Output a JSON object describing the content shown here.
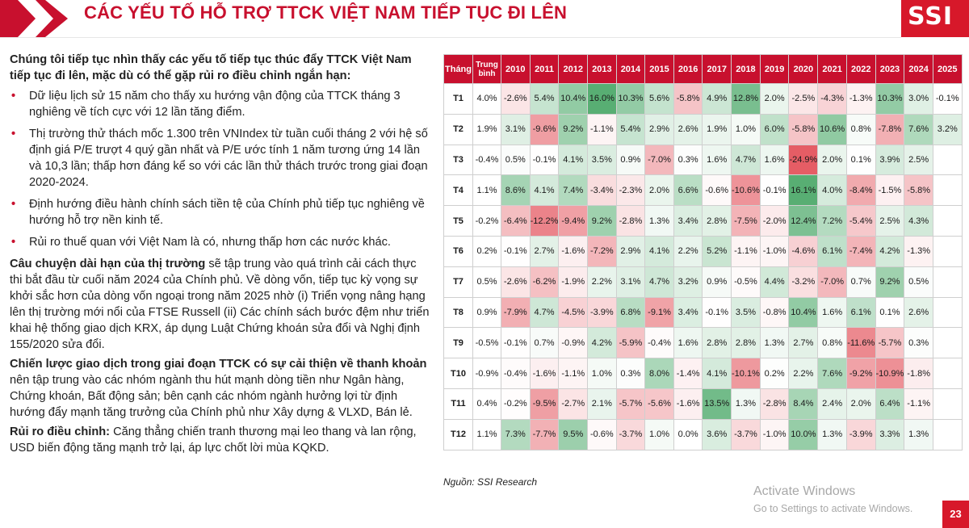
{
  "header": {
    "title": "CÁC YẾU TỐ HỖ TRỢ TTCK VIỆT NAM TIẾP TỤC ĐI LÊN",
    "logo": "SSI",
    "accent_color": "#c8102e"
  },
  "left": {
    "intro": "Chúng tôi tiếp tục nhìn thấy các yếu tố tiếp tục thúc đẩy TTCK Việt Nam tiếp tục đi lên, mặc dù có thể gặp rủi ro điều chỉnh ngắn hạn:",
    "bullets": [
      "Dữ liệu lịch sử 15 năm cho thấy xu hướng vận động của TTCK tháng 3 nghiêng về tích cực với 12 lần tăng điểm.",
      "Thị trường thử thách mốc 1.300 trên VNIndex từ tuần cuối tháng 2 với hệ số định giá P/E trượt 4 quý gần nhất và P/E ước tính 1 năm tương ứng 14 lần và 10,3 lần; thấp hơn đáng kể so với các lần thử thách trước trong giai đoạn 2020-2024.",
      "Định hướng điều hành chính sách tiền tệ của Chính phủ tiếp tục nghiêng về hướng hỗ trợ nền kinh tế.",
      "Rủi ro thuế quan với Việt Nam là có, nhưng thấp hơn các nước khác."
    ],
    "paragraphs": [
      {
        "lead": "Câu chuyện dài hạn của thị trường",
        "text": " sẽ tập trung vào quá trình cải cách thực thi bắt đầu từ cuối năm 2024 của Chính phủ. Về dòng vốn, tiếp tục kỳ vọng sự khởi sắc hơn của dòng vốn ngoại trong năm 2025 nhờ (i) Triển vọng nâng hạng lên thị trường mới nổi của FTSE Russell (ii) Các chính sách bước đệm như triển khai hệ thống giao dịch KRX, áp dụng Luật Chứng khoán sửa đổi và Nghị định 155/2020 sửa đổi."
      },
      {
        "lead": "Chiến lược giao dịch trong giai đoạn TTCK có sự cải thiện về thanh khoản",
        "text": " nên tập trung vào các nhóm ngành thu hút mạnh dòng tiền như Ngân hàng, Chứng khoán, Bất động sản; bên cạnh các nhóm ngành hưởng lợi từ định hướng đẩy mạnh tăng trưởng của Chính phủ như Xây dựng & VLXD, Bán lẻ."
      },
      {
        "lead": "Rủi ro điều chỉnh:",
        "text": " Căng thẳng chiến tranh thương mại leo thang và lan rộng, USD biến động tăng mạnh trở lại, áp lực chốt lời mùa KQKD."
      }
    ]
  },
  "table": {
    "headers": [
      "Tháng",
      "Trung bình",
      "2010",
      "2011",
      "2012",
      "2013",
      "2014",
      "2015",
      "2016",
      "2017",
      "2018",
      "2019",
      "2020",
      "2021",
      "2022",
      "2023",
      "2024",
      "2025"
    ],
    "rows": [
      {
        "label": "T1",
        "cells": [
          "4.0%",
          "-2.6%",
          "5.4%",
          "10.4%",
          "16.0%",
          "10.3%",
          "5.6%",
          "-5.8%",
          "4.9%",
          "12.8%",
          "2.0%",
          "-2.5%",
          "-4.3%",
          "-1.3%",
          "10.3%",
          "3.0%",
          "-0.1%"
        ]
      },
      {
        "label": "T2",
        "cells": [
          "1.9%",
          "3.1%",
          "-9.6%",
          "9.2%",
          "-1.1%",
          "5.4%",
          "2.9%",
          "2.6%",
          "1.9%",
          "1.0%",
          "6.0%",
          "-5.8%",
          "10.6%",
          "0.8%",
          "-7.8%",
          "7.6%",
          "3.2%"
        ]
      },
      {
        "label": "T3",
        "cells": [
          "-0.4%",
          "0.5%",
          "-0.1%",
          "4.1%",
          "3.5%",
          "0.9%",
          "-7.0%",
          "0.3%",
          "1.6%",
          "4.7%",
          "1.6%",
          "-24.9%",
          "2.0%",
          "0.1%",
          "3.9%",
          "2.5%",
          ""
        ]
      },
      {
        "label": "T4",
        "cells": [
          "1.1%",
          "8.6%",
          "4.1%",
          "7.4%",
          "-3.4%",
          "-2.3%",
          "2.0%",
          "6.6%",
          "-0.6%",
          "-10.6%",
          "-0.1%",
          "16.1%",
          "4.0%",
          "-8.4%",
          "-1.5%",
          "-5.8%",
          ""
        ]
      },
      {
        "label": "T5",
        "cells": [
          "-0.2%",
          "-6.4%",
          "-12.2%",
          "-9.4%",
          "9.2%",
          "-2.8%",
          "1.3%",
          "3.4%",
          "2.8%",
          "-7.5%",
          "-2.0%",
          "12.4%",
          "7.2%",
          "-5.4%",
          "2.5%",
          "4.3%",
          ""
        ]
      },
      {
        "label": "T6",
        "cells": [
          "0.2%",
          "-0.1%",
          "2.7%",
          "-1.6%",
          "-7.2%",
          "2.9%",
          "4.1%",
          "2.2%",
          "5.2%",
          "-1.1%",
          "-1.0%",
          "-4.6%",
          "6.1%",
          "-7.4%",
          "4.2%",
          "-1.3%",
          ""
        ]
      },
      {
        "label": "T7",
        "cells": [
          "0.5%",
          "-2.6%",
          "-6.2%",
          "-1.9%",
          "2.2%",
          "3.1%",
          "4.7%",
          "3.2%",
          "0.9%",
          "-0.5%",
          "4.4%",
          "-3.2%",
          "-7.0%",
          "0.7%",
          "9.2%",
          "0.5%",
          ""
        ]
      },
      {
        "label": "T8",
        "cells": [
          "0.9%",
          "-7.9%",
          "4.7%",
          "-4.5%",
          "-3.9%",
          "6.8%",
          "-9.1%",
          "3.4%",
          "-0.1%",
          "3.5%",
          "-0.8%",
          "10.4%",
          "1.6%",
          "6.1%",
          "0.1%",
          "2.6%",
          ""
        ]
      },
      {
        "label": "T9",
        "cells": [
          "-0.5%",
          "-0.1%",
          "0.7%",
          "-0.9%",
          "4.2%",
          "-5.9%",
          "-0.4%",
          "1.6%",
          "2.8%",
          "2.8%",
          "1.3%",
          "2.7%",
          "0.8%",
          "-11.6%",
          "-5.7%",
          "0.3%",
          ""
        ]
      },
      {
        "label": "T10",
        "cells": [
          "-0.9%",
          "-0.4%",
          "-1.6%",
          "-1.1%",
          "1.0%",
          "0.3%",
          "8.0%",
          "-1.4%",
          "4.1%",
          "-10.1%",
          "0.2%",
          "2.2%",
          "7.6%",
          "-9.2%",
          "-10.9%",
          "-1.8%",
          ""
        ]
      },
      {
        "label": "T11",
        "cells": [
          "0.4%",
          "-0.2%",
          "-9.5%",
          "-2.7%",
          "2.1%",
          "-5.7%",
          "-5.6%",
          "-1.6%",
          "13.5%",
          "1.3%",
          "-2.8%",
          "8.4%",
          "2.4%",
          "2.0%",
          "6.4%",
          "-1.1%",
          ""
        ]
      },
      {
        "label": "T12",
        "cells": [
          "1.1%",
          "7.3%",
          "-7.7%",
          "9.5%",
          "-0.6%",
          "-3.7%",
          "1.0%",
          "0.0%",
          "3.6%",
          "-3.7%",
          "-1.0%",
          "10.0%",
          "1.3%",
          "-3.9%",
          "3.3%",
          "1.3%",
          ""
        ]
      }
    ],
    "positive_color": "#3aa05a",
    "negative_color": "#e0404a"
  },
  "source": "Nguồn: SSI Research",
  "watermark": {
    "line1": "Activate Windows",
    "line2": "Go to Settings to activate Windows."
  },
  "page_number": "23"
}
